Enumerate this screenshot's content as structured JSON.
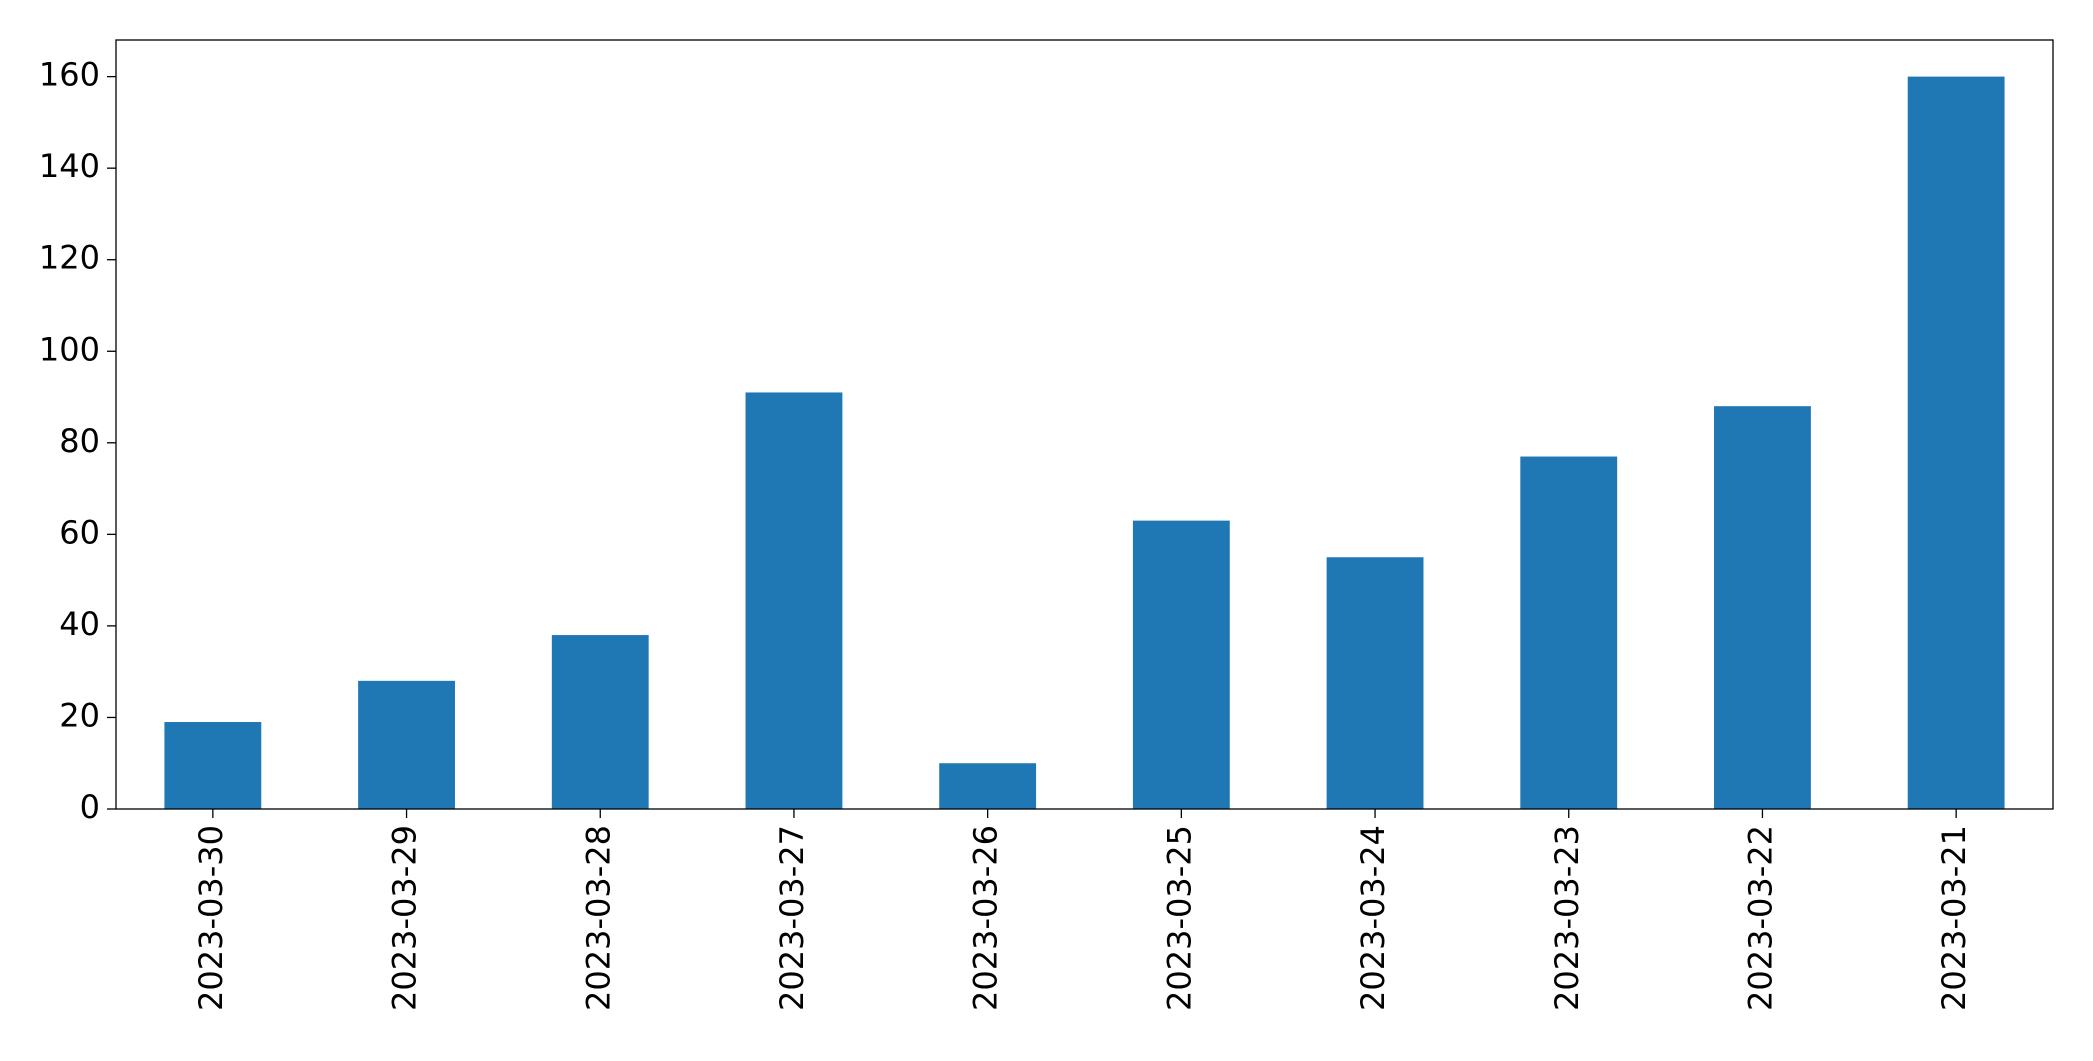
{
  "chart_data": {
    "type": "bar",
    "categories": [
      "2023-03-30",
      "2023-03-29",
      "2023-03-28",
      "2023-03-27",
      "2023-03-26",
      "2023-03-25",
      "2023-03-24",
      "2023-03-23",
      "2023-03-22",
      "2023-03-21"
    ],
    "values": [
      19,
      28,
      38,
      91,
      10,
      63,
      55,
      77,
      88,
      160
    ],
    "color": "#1f77b4",
    "ylim": [
      0,
      168
    ],
    "yticks": [
      0,
      20,
      40,
      60,
      80,
      100,
      120,
      140,
      160
    ],
    "grid": false
  }
}
